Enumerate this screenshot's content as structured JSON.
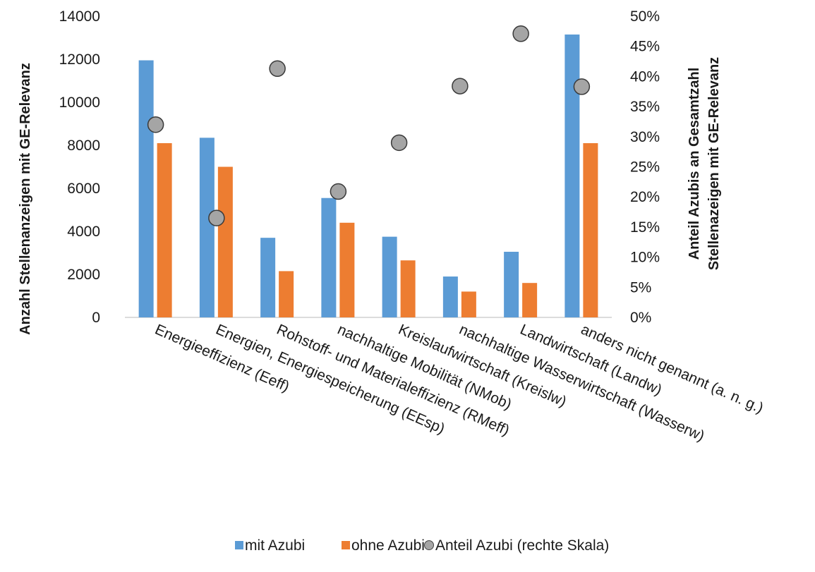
{
  "chart_data": {
    "type": "bar",
    "categories": [
      "Energieeffizienz (Eeff)",
      "Energien, Energiespeicherung (EEsp)",
      "Rohstoff- und Materialeffizienz (RMeff)",
      "nachhaltige Mobilität (NMob)",
      "Kreislaufwirtschaft (Kreislw)",
      "nachhaltige Wasserwirtschaft (Wasserw)",
      "Landwirtschaft (Landw)",
      "anders nicht genannt (a. n. g.)"
    ],
    "series": [
      {
        "name": "mit Azubi",
        "type": "bar",
        "axis": "left",
        "color": "#5b9bd5",
        "values": [
          11950,
          8350,
          3700,
          5550,
          3750,
          1900,
          3050,
          13150
        ]
      },
      {
        "name": "ohne Azubi",
        "type": "bar",
        "axis": "left",
        "color": "#ed7d31",
        "values": [
          8100,
          7000,
          2150,
          4400,
          2650,
          1200,
          1600,
          8100
        ]
      },
      {
        "name": "Anteil Azubi (rechte Skala)",
        "type": "scatter",
        "axis": "right",
        "color": "#a5a5a5",
        "values": [
          0.32,
          0.165,
          0.413,
          0.209,
          0.29,
          0.384,
          0.471,
          0.383
        ]
      }
    ],
    "ylabel_left": "Anzahl  Stellenanzeigen  mit GE-Relevanz",
    "ylabel_right_line1": "Anteil  Azubis  an Gesamtzahl",
    "ylabel_right_line2": "Stellenazeigen  mit GE-Relevanz",
    "ylim_left": [
      0,
      14000
    ],
    "yticks_left": [
      "0",
      "2000",
      "4000",
      "6000",
      "8000",
      "10000",
      "12000",
      "14000"
    ],
    "ylim_right": [
      0,
      0.5
    ],
    "yticks_right": [
      "0%",
      "5%",
      "10%",
      "15%",
      "20%",
      "25%",
      "30%",
      "35%",
      "40%",
      "45%",
      "50%"
    ],
    "grid": false,
    "legend_position": "bottom"
  }
}
